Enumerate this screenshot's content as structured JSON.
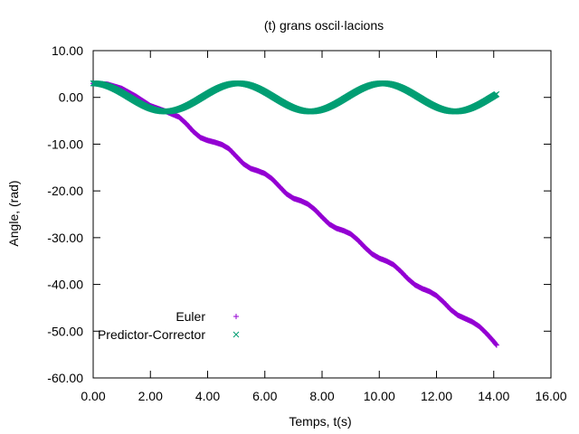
{
  "chart_data": {
    "type": "scatter",
    "title": "(t) grans oscil·lacions",
    "xlabel": "Temps, t(s)",
    "ylabel": "Angle,   (rad)",
    "xlim": [
      0,
      16
    ],
    "ylim": [
      -60,
      10
    ],
    "xticks": [
      0,
      2,
      4,
      6,
      8,
      10,
      12,
      14,
      16
    ],
    "yticks": [
      -60,
      -50,
      -40,
      -30,
      -20,
      -10,
      0,
      10
    ],
    "xtick_labels": [
      "0.00",
      "2.00",
      "4.00",
      "6.00",
      "8.00",
      "10.00",
      "12.00",
      "14.00",
      "16.00"
    ],
    "ytick_labels": [
      "-60.00",
      "-50.00",
      "-40.00",
      "-30.00",
      "-20.00",
      "-10.00",
      "0.00",
      "10.00"
    ],
    "grid": false,
    "legend_position": "bottom-left",
    "series": [
      {
        "name": "Euler",
        "marker": "+",
        "color": "#9400d3",
        "x": [
          0.0,
          0.5,
          1.0,
          1.5,
          2.0,
          2.5,
          3.0,
          3.25,
          3.5,
          3.75,
          4.0,
          4.25,
          4.5,
          4.75,
          5.0,
          5.25,
          5.5,
          5.75,
          6.0,
          6.25,
          6.5,
          6.75,
          7.0,
          7.25,
          7.5,
          7.75,
          8.0,
          8.25,
          8.5,
          8.75,
          9.0,
          9.25,
          9.5,
          9.75,
          10.0,
          10.25,
          10.5,
          10.75,
          11.0,
          11.25,
          11.5,
          11.75,
          12.0,
          12.25,
          12.5,
          12.75,
          13.0,
          13.25,
          13.5,
          13.75,
          14.0,
          14.1
        ],
        "y": [
          3.0,
          2.8,
          1.9,
          0.2,
          -1.8,
          -2.9,
          -4.2,
          -5.6,
          -7.3,
          -8.6,
          -9.2,
          -9.6,
          -10.1,
          -11.0,
          -12.6,
          -14.2,
          -15.2,
          -15.7,
          -16.3,
          -17.4,
          -19.0,
          -20.6,
          -21.6,
          -22.1,
          -22.8,
          -24.0,
          -25.6,
          -27.1,
          -28.0,
          -28.5,
          -29.2,
          -30.5,
          -32.1,
          -33.5,
          -34.4,
          -35.0,
          -35.8,
          -37.2,
          -38.8,
          -40.1,
          -40.9,
          -41.5,
          -42.4,
          -43.8,
          -45.4,
          -46.6,
          -47.3,
          -48.0,
          -49.0,
          -50.5,
          -52.2,
          -53.0
        ]
      },
      {
        "name": "Predictor-Corrector",
        "marker": "x",
        "color": "#009e73",
        "amplitude": 3.0,
        "period": 5.06,
        "x_range": [
          0.0,
          14.1
        ]
      }
    ]
  }
}
